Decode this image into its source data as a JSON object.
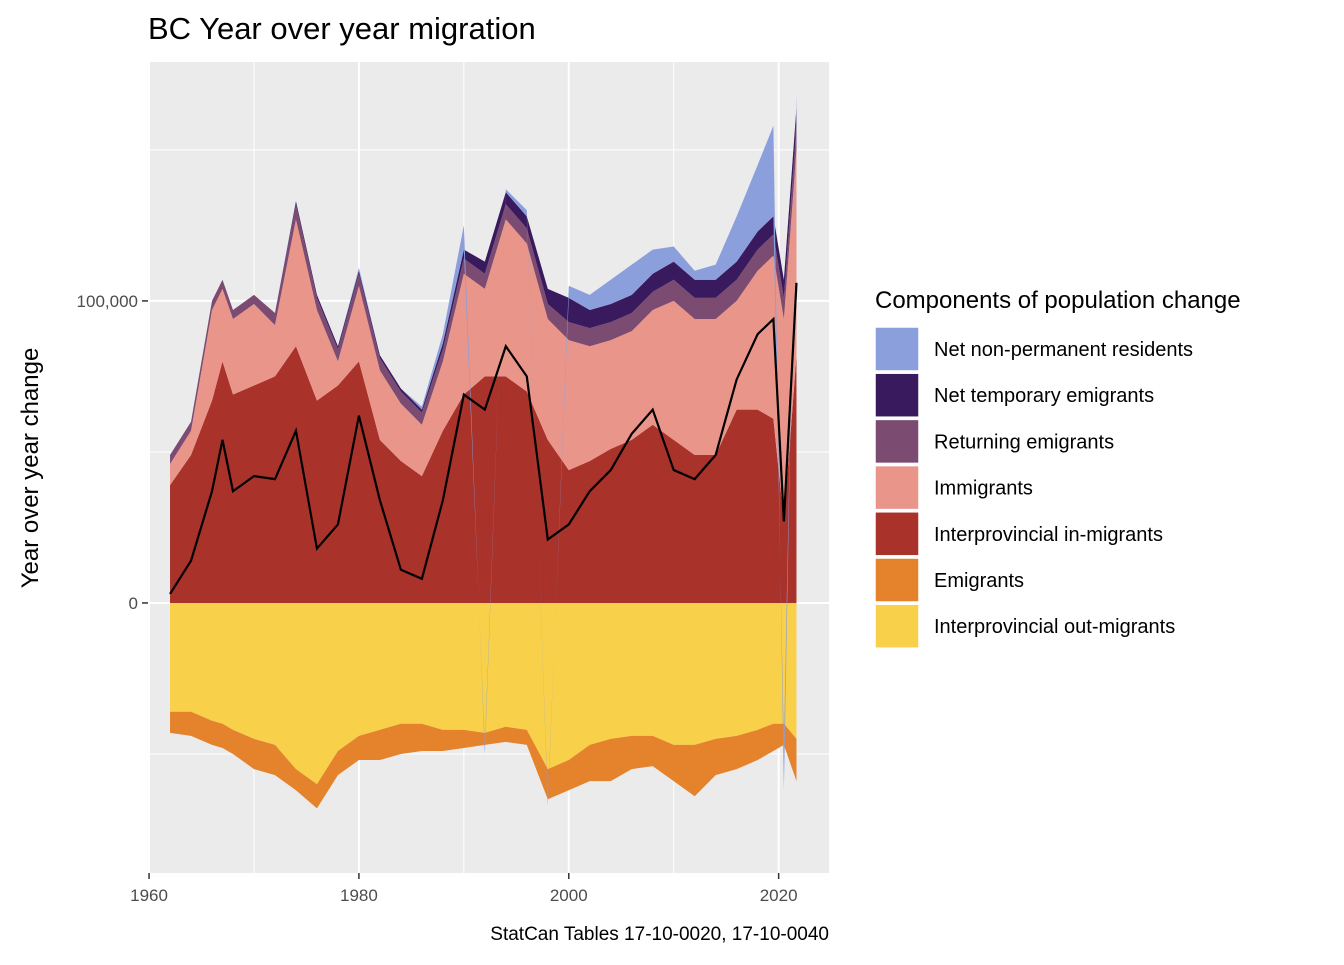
{
  "chart_data": {
    "type": "stacked-area",
    "title": "BC Year over year migration",
    "y_label": "Year over year change",
    "caption": "StatCan Tables 17-10-0020, 17-10-0040",
    "legend_title": "Components of population change",
    "legend_position": "right",
    "grid": true,
    "xlim": [
      1959.9,
      2024.8
    ],
    "ylim": [
      -89400,
      179100
    ],
    "xticks": [
      1960,
      1980,
      2000,
      2020
    ],
    "yticks": [
      0,
      {
        "value": 100000,
        "label": "100,000"
      }
    ],
    "x_minor_grid": [
      1970,
      1990,
      2010
    ],
    "y_minor_grid": [
      -50000,
      50000,
      150000
    ],
    "x": [
      1962,
      1964,
      1966,
      1967,
      1968,
      1970,
      1972,
      1974,
      1976,
      1978,
      1980,
      1982,
      1984,
      1986,
      1988,
      1990,
      1992,
      1994,
      1996,
      1998,
      2000,
      2002,
      2004,
      2006,
      2008,
      2010,
      2012,
      2014,
      2016,
      2018,
      2019.5,
      2020.5,
      2021.7
    ],
    "series": [
      {
        "name": "Net non-permanent residents",
        "color": "#8a9fdc",
        "values": [
          0,
          0,
          0,
          0,
          0,
          0,
          0,
          0,
          0,
          0,
          1000,
          0,
          0,
          1000,
          3000,
          8000,
          -3000,
          1000,
          2000,
          -2000,
          4000,
          5000,
          8000,
          10000,
          8000,
          5000,
          3000,
          5000,
          15000,
          22000,
          30000,
          -15000,
          5000
        ]
      },
      {
        "name": "Net temporary emigrants",
        "color": "#3a1a5e",
        "values": [
          0,
          0,
          0,
          0,
          0,
          0,
          0,
          1000,
          1000,
          1000,
          1000,
          1000,
          1000,
          1000,
          2000,
          3000,
          4000,
          4000,
          4000,
          5000,
          8000,
          6000,
          6000,
          6000,
          6000,
          6000,
          6000,
          6000,
          6000,
          6000,
          6000,
          6000,
          6000
        ]
      },
      {
        "name": "Returning emigrants",
        "color": "#7b4b72",
        "values": [
          3000,
          3000,
          3000,
          3000,
          3000,
          3000,
          4000,
          5000,
          4000,
          4000,
          4000,
          4000,
          4000,
          4000,
          4000,
          5000,
          5000,
          5000,
          5000,
          5000,
          6000,
          6000,
          6000,
          6000,
          6000,
          7000,
          7000,
          7000,
          7000,
          7000,
          7000,
          7000,
          8000
        ]
      },
      {
        "name": "Immigrants",
        "color": "#ea958a",
        "values": [
          7000,
          8000,
          30000,
          24000,
          25000,
          27000,
          17000,
          42000,
          30000,
          8000,
          25000,
          23000,
          19000,
          17000,
          23000,
          40000,
          29000,
          52000,
          49000,
          40000,
          43000,
          38000,
          36000,
          36000,
          38000,
          46000,
          45000,
          45000,
          36000,
          46000,
          54000,
          67000,
          68000
        ]
      },
      {
        "name": "Interprovincial in-migrants",
        "color": "#a9322a",
        "values": [
          39000,
          49000,
          67000,
          80000,
          69000,
          72000,
          75000,
          85000,
          67000,
          72000,
          80000,
          54000,
          47000,
          42000,
          57000,
          69000,
          75000,
          75000,
          70000,
          54000,
          44000,
          47000,
          51000,
          54000,
          59000,
          54000,
          49000,
          49000,
          64000,
          64000,
          61000,
          27000,
          82000
        ]
      },
      {
        "name": "Emigrants",
        "color": "#e5822c",
        "values": [
          -7000,
          -8000,
          -8000,
          -8000,
          -8000,
          -10000,
          -10000,
          -7000,
          -8000,
          -8000,
          -8000,
          -10000,
          -10000,
          -9000,
          -7000,
          -6000,
          -4000,
          -5000,
          -5000,
          -10000,
          -10000,
          -12000,
          -14000,
          -11000,
          -10000,
          -12000,
          -17000,
          -12000,
          -11000,
          -10000,
          -9000,
          -7000,
          -14000
        ]
      },
      {
        "name": "Interprovincial out-migrants",
        "color": "#f8d04a",
        "values": [
          -36000,
          -36000,
          -39000,
          -40000,
          -42000,
          -45000,
          -47000,
          -55000,
          -60000,
          -49000,
          -44000,
          -42000,
          -40000,
          -40000,
          -42000,
          -42000,
          -43000,
          -41000,
          -42000,
          -55000,
          -52000,
          -47000,
          -45000,
          -44000,
          -44000,
          -47000,
          -47000,
          -45000,
          -44000,
          -42000,
          -40000,
          -40000,
          -45000
        ]
      }
    ],
    "net_line": {
      "color": "#000000",
      "values": [
        3000,
        14000,
        37000,
        54000,
        37000,
        42000,
        41000,
        57000,
        18000,
        26000,
        62000,
        34000,
        11000,
        8000,
        34000,
        69000,
        64000,
        85000,
        75000,
        21000,
        26000,
        37000,
        44000,
        56000,
        64000,
        44000,
        41000,
        49000,
        74000,
        89000,
        94000,
        27000,
        106000
      ]
    }
  }
}
